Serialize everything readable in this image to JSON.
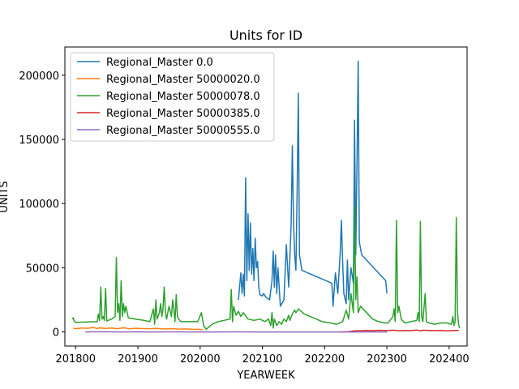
{
  "chart_data": {
    "type": "line",
    "title": "Units for ID",
    "xlabel": "YEARWEEK",
    "ylabel": "UNITS",
    "xlim": [
      201743,
      202415
    ],
    "ylim": [
      -11000,
      222000
    ],
    "xticks": [
      201800,
      201900,
      202000,
      202100,
      202200,
      202300,
      202400
    ],
    "yticks": [
      0,
      50000,
      100000,
      150000,
      200000
    ],
    "grid": false,
    "legend_position": "upper-left",
    "series": [
      {
        "name": "Regional_Master 0.0",
        "color": "#1f77b4",
        "points": [
          [
            202032,
            25000
          ],
          [
            202034,
            46000
          ],
          [
            202035,
            30000
          ],
          [
            202036,
            45000
          ],
          [
            202037,
            28000
          ],
          [
            202038,
            120000
          ],
          [
            202039,
            40000
          ],
          [
            202040,
            92000
          ],
          [
            202041,
            48000
          ],
          [
            202042,
            85000
          ],
          [
            202043,
            45000
          ],
          [
            202044,
            65000
          ],
          [
            202045,
            40000
          ],
          [
            202046,
            73000
          ],
          [
            202047,
            50000
          ],
          [
            202048,
            55000
          ],
          [
            202049,
            35000
          ],
          [
            202050,
            29000
          ],
          [
            202100,
            28000
          ],
          [
            202101,
            30000
          ],
          [
            202103,
            27000
          ],
          [
            202106,
            25000
          ],
          [
            202108,
            40000
          ],
          [
            202109,
            63000
          ],
          [
            202110,
            35000
          ],
          [
            202111,
            60000
          ],
          [
            202112,
            30000
          ],
          [
            202113,
            50000
          ],
          [
            202115,
            20000
          ],
          [
            202118,
            25000
          ],
          [
            202120,
            68000
          ],
          [
            202122,
            35000
          ],
          [
            202124,
            83000
          ],
          [
            202125,
            145000
          ],
          [
            202126,
            85000
          ],
          [
            202127,
            60000
          ],
          [
            202128,
            48000
          ],
          [
            202129,
            110000
          ],
          [
            202130,
            186000
          ],
          [
            202131,
            60000
          ],
          [
            202133,
            48000
          ],
          [
            202206,
            38000
          ],
          [
            202207,
            20000
          ],
          [
            202209,
            46000
          ],
          [
            202211,
            30000
          ],
          [
            202213,
            62000
          ],
          [
            202214,
            87000
          ],
          [
            202215,
            55000
          ],
          [
            202216,
            30000
          ],
          [
            202218,
            22000
          ],
          [
            202219,
            56000
          ],
          [
            202220,
            25000
          ],
          [
            202222,
            50000
          ],
          [
            202224,
            38000
          ],
          [
            202225,
            165000
          ],
          [
            202226,
            60000
          ],
          [
            202227,
            130000
          ],
          [
            202228,
            211000
          ],
          [
            202229,
            70000
          ],
          [
            202231,
            60000
          ],
          [
            202251,
            40000
          ],
          [
            202252,
            30000
          ]
        ]
      },
      {
        "name": "Regional_Master 50000020.0",
        "color": "#ff7f0e",
        "points": [
          [
            201750,
            3000
          ],
          [
            201752,
            2500
          ],
          [
            201805,
            3000
          ],
          [
            201810,
            2800
          ],
          [
            201815,
            3500
          ],
          [
            201818,
            2500
          ],
          [
            201820,
            3200
          ],
          [
            201825,
            2700
          ],
          [
            201830,
            3000
          ],
          [
            201835,
            2500
          ],
          [
            201840,
            3300
          ],
          [
            201845,
            2400
          ],
          [
            201850,
            2800
          ],
          [
            201905,
            2600
          ],
          [
            201910,
            2500
          ],
          [
            201915,
            2700
          ],
          [
            201920,
            2400
          ],
          [
            201925,
            2300
          ],
          [
            201930,
            2500
          ],
          [
            201935,
            2200
          ],
          [
            201940,
            2300
          ],
          [
            201945,
            2100
          ],
          [
            201950,
            2000
          ],
          [
            202002,
            1800
          ]
        ]
      },
      {
        "name": "Regional_Master 50000078.0",
        "color": "#2ca02c",
        "points": [
          [
            201749,
            10000
          ],
          [
            201750,
            11000
          ],
          [
            201751,
            8000
          ],
          [
            201752,
            7500
          ],
          [
            201818,
            8000
          ],
          [
            201819,
            14000
          ],
          [
            201820,
            9000
          ],
          [
            201821,
            35000
          ],
          [
            201822,
            10000
          ],
          [
            201823,
            12000
          ],
          [
            201824,
            9000
          ],
          [
            201825,
            34000
          ],
          [
            201826,
            8500
          ],
          [
            201830,
            10000
          ],
          [
            201833,
            12000
          ],
          [
            201834,
            58000
          ],
          [
            201835,
            15000
          ],
          [
            201836,
            22000
          ],
          [
            201837,
            9000
          ],
          [
            201838,
            40000
          ],
          [
            201839,
            12000
          ],
          [
            201840,
            22000
          ],
          [
            201841,
            15000
          ],
          [
            201842,
            20000
          ],
          [
            201844,
            11000
          ],
          [
            201850,
            10000
          ],
          [
            201905,
            9000
          ],
          [
            201910,
            8000
          ],
          [
            201913,
            18000
          ],
          [
            201914,
            6000
          ],
          [
            201915,
            25000
          ],
          [
            201916,
            10000
          ],
          [
            201918,
            15000
          ],
          [
            201919,
            22000
          ],
          [
            201920,
            12000
          ],
          [
            201921,
            18000
          ],
          [
            201922,
            35000
          ],
          [
            201923,
            15000
          ],
          [
            201924,
            10000
          ],
          [
            201926,
            20000
          ],
          [
            201928,
            12000
          ],
          [
            201929,
            25000
          ],
          [
            201930,
            18000
          ],
          [
            201931,
            8000
          ],
          [
            201932,
            29000
          ],
          [
            201933,
            12000
          ],
          [
            201934,
            10000
          ],
          [
            201936,
            8000
          ],
          [
            201945,
            8000
          ],
          [
            201950,
            8000
          ],
          [
            202001,
            15000
          ],
          [
            202003,
            5000
          ],
          [
            202005,
            2000
          ],
          [
            202010,
            6000
          ],
          [
            202015,
            8000
          ],
          [
            202020,
            9000
          ],
          [
            202025,
            10000
          ],
          [
            202026,
            33000
          ],
          [
            202027,
            8000
          ],
          [
            202028,
            20000
          ],
          [
            202030,
            13000
          ],
          [
            202032,
            16000
          ],
          [
            202034,
            12000
          ],
          [
            202036,
            15000
          ],
          [
            202040,
            10000
          ],
          [
            202045,
            9000
          ],
          [
            202050,
            10000
          ],
          [
            202102,
            8000
          ],
          [
            202105,
            10000
          ],
          [
            202107,
            5000
          ],
          [
            202108,
            15000
          ],
          [
            202109,
            3000
          ],
          [
            202110,
            10000
          ],
          [
            202112,
            5000
          ],
          [
            202114,
            8000
          ],
          [
            202116,
            6000
          ],
          [
            202118,
            10000
          ],
          [
            202120,
            8000
          ],
          [
            202122,
            13000
          ],
          [
            202123,
            9000
          ],
          [
            202125,
            14000
          ],
          [
            202127,
            17000
          ],
          [
            202128,
            15000
          ],
          [
            202130,
            18000
          ],
          [
            202135,
            14000
          ],
          [
            202140,
            12000
          ],
          [
            202145,
            10000
          ],
          [
            202150,
            8000
          ],
          [
            202205,
            7000
          ],
          [
            202210,
            6000
          ],
          [
            202215,
            8000
          ],
          [
            202218,
            17000
          ],
          [
            202220,
            10000
          ],
          [
            202222,
            30000
          ],
          [
            202224,
            15000
          ],
          [
            202225,
            98000
          ],
          [
            202226,
            25000
          ],
          [
            202227,
            43000
          ],
          [
            202228,
            15000
          ],
          [
            202230,
            20000
          ],
          [
            202235,
            15000
          ],
          [
            202240,
            10000
          ],
          [
            202245,
            8000
          ],
          [
            202250,
            7000
          ],
          [
            202301,
            7000
          ],
          [
            202305,
            12000
          ],
          [
            202306,
            18000
          ],
          [
            202307,
            8000
          ],
          [
            202308,
            87000
          ],
          [
            202309,
            15000
          ],
          [
            202310,
            20000
          ],
          [
            202312,
            10000
          ],
          [
            202315,
            7000
          ],
          [
            202320,
            8000
          ],
          [
            202325,
            9000
          ],
          [
            202326,
            15000
          ],
          [
            202327,
            8000
          ],
          [
            202328,
            86000
          ],
          [
            202329,
            12000
          ],
          [
            202330,
            8000
          ],
          [
            202332,
            30000
          ],
          [
            202333,
            8000
          ],
          [
            202335,
            7000
          ],
          [
            202340,
            6000
          ],
          [
            202345,
            7000
          ],
          [
            202350,
            7000
          ],
          [
            202402,
            6000
          ],
          [
            202403,
            12000
          ],
          [
            202404,
            5000
          ],
          [
            202405,
            8000
          ],
          [
            202406,
            89000
          ],
          [
            202407,
            15000
          ],
          [
            202408,
            5000
          ],
          [
            202409,
            3000
          ]
        ]
      },
      {
        "name": "Regional_Master 50000385.0",
        "color": "#d62728",
        "points": [
          [
            202213,
            0
          ],
          [
            202220,
            200
          ],
          [
            202225,
            800
          ],
          [
            202230,
            1000
          ],
          [
            202235,
            1200
          ],
          [
            202240,
            1000
          ],
          [
            202245,
            1300
          ],
          [
            202250,
            1100
          ],
          [
            202301,
            1000
          ],
          [
            202305,
            1400
          ],
          [
            202310,
            900
          ],
          [
            202315,
            1200
          ],
          [
            202320,
            1000
          ],
          [
            202325,
            1500
          ],
          [
            202328,
            800
          ],
          [
            202330,
            1300
          ],
          [
            202335,
            1100
          ],
          [
            202340,
            1000
          ],
          [
            202345,
            1200
          ],
          [
            202350,
            900
          ],
          [
            202402,
            1000
          ],
          [
            202405,
            1200
          ],
          [
            202408,
            1100
          ]
        ]
      },
      {
        "name": "Regional_Master 50000555.0",
        "color": "#9467bd",
        "points": [
          [
            201808,
            0
          ],
          [
            201820,
            100
          ],
          [
            201840,
            0
          ],
          [
            201852,
            100
          ],
          [
            201910,
            0
          ],
          [
            201930,
            50
          ],
          [
            201950,
            0
          ],
          [
            202010,
            0
          ],
          [
            202030,
            50
          ],
          [
            202050,
            0
          ],
          [
            202110,
            0
          ],
          [
            202130,
            0
          ],
          [
            202150,
            0
          ],
          [
            202210,
            0
          ],
          [
            202230,
            0
          ],
          [
            202252,
            0
          ]
        ]
      }
    ]
  }
}
